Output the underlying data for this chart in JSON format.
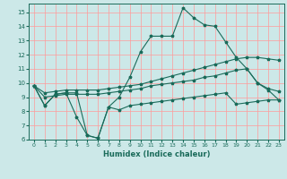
{
  "xlabel": "Humidex (Indice chaleur)",
  "background_color": "#cce8e8",
  "grid_color": "#ff9999",
  "line_color": "#1a6b5a",
  "xlim": [
    -0.5,
    23.5
  ],
  "ylim": [
    6,
    15.6
  ],
  "xticks": [
    0,
    1,
    2,
    3,
    4,
    5,
    6,
    7,
    8,
    9,
    10,
    11,
    12,
    13,
    14,
    15,
    16,
    17,
    18,
    19,
    20,
    21,
    22,
    23
  ],
  "yticks": [
    6,
    7,
    8,
    9,
    10,
    11,
    12,
    13,
    14,
    15
  ],
  "line1_x": [
    0,
    1,
    2,
    3,
    4,
    5,
    6,
    7,
    8,
    9,
    10,
    11,
    12,
    13,
    14,
    15,
    16,
    17,
    18,
    19,
    20,
    21,
    22,
    23
  ],
  "line1_y": [
    9.8,
    8.4,
    9.2,
    9.3,
    9.3,
    6.3,
    6.1,
    8.3,
    9.0,
    10.4,
    12.2,
    13.3,
    13.3,
    13.3,
    15.3,
    14.6,
    14.1,
    14.0,
    12.9,
    11.8,
    11.0,
    10.0,
    9.5,
    8.8
  ],
  "line2_x": [
    0,
    1,
    2,
    3,
    4,
    5,
    6,
    7,
    8,
    9,
    10,
    11,
    12,
    13,
    14,
    15,
    16,
    17,
    18,
    19,
    20,
    21,
    22,
    23
  ],
  "line2_y": [
    9.8,
    8.4,
    9.2,
    9.3,
    7.6,
    6.3,
    6.1,
    8.3,
    8.1,
    8.4,
    8.5,
    8.6,
    8.7,
    8.8,
    8.9,
    9.0,
    9.1,
    9.2,
    9.3,
    8.5,
    8.6,
    8.7,
    8.8,
    8.8
  ],
  "line3_x": [
    0,
    1,
    2,
    3,
    4,
    5,
    6,
    7,
    8,
    9,
    10,
    11,
    12,
    13,
    14,
    15,
    16,
    17,
    18,
    19,
    20,
    21,
    22,
    23
  ],
  "line3_y": [
    9.8,
    9.3,
    9.4,
    9.5,
    9.5,
    9.5,
    9.5,
    9.6,
    9.7,
    9.8,
    9.9,
    10.1,
    10.3,
    10.5,
    10.7,
    10.9,
    11.1,
    11.3,
    11.5,
    11.7,
    11.8,
    11.8,
    11.7,
    11.6
  ],
  "line4_x": [
    0,
    1,
    2,
    3,
    4,
    5,
    6,
    7,
    8,
    9,
    10,
    11,
    12,
    13,
    14,
    15,
    16,
    17,
    18,
    19,
    20,
    21,
    22,
    23
  ],
  "line4_y": [
    9.8,
    9.0,
    9.1,
    9.2,
    9.2,
    9.2,
    9.2,
    9.3,
    9.4,
    9.5,
    9.6,
    9.8,
    9.9,
    10.0,
    10.1,
    10.2,
    10.4,
    10.5,
    10.7,
    10.9,
    11.0,
    10.0,
    9.6,
    9.4
  ]
}
